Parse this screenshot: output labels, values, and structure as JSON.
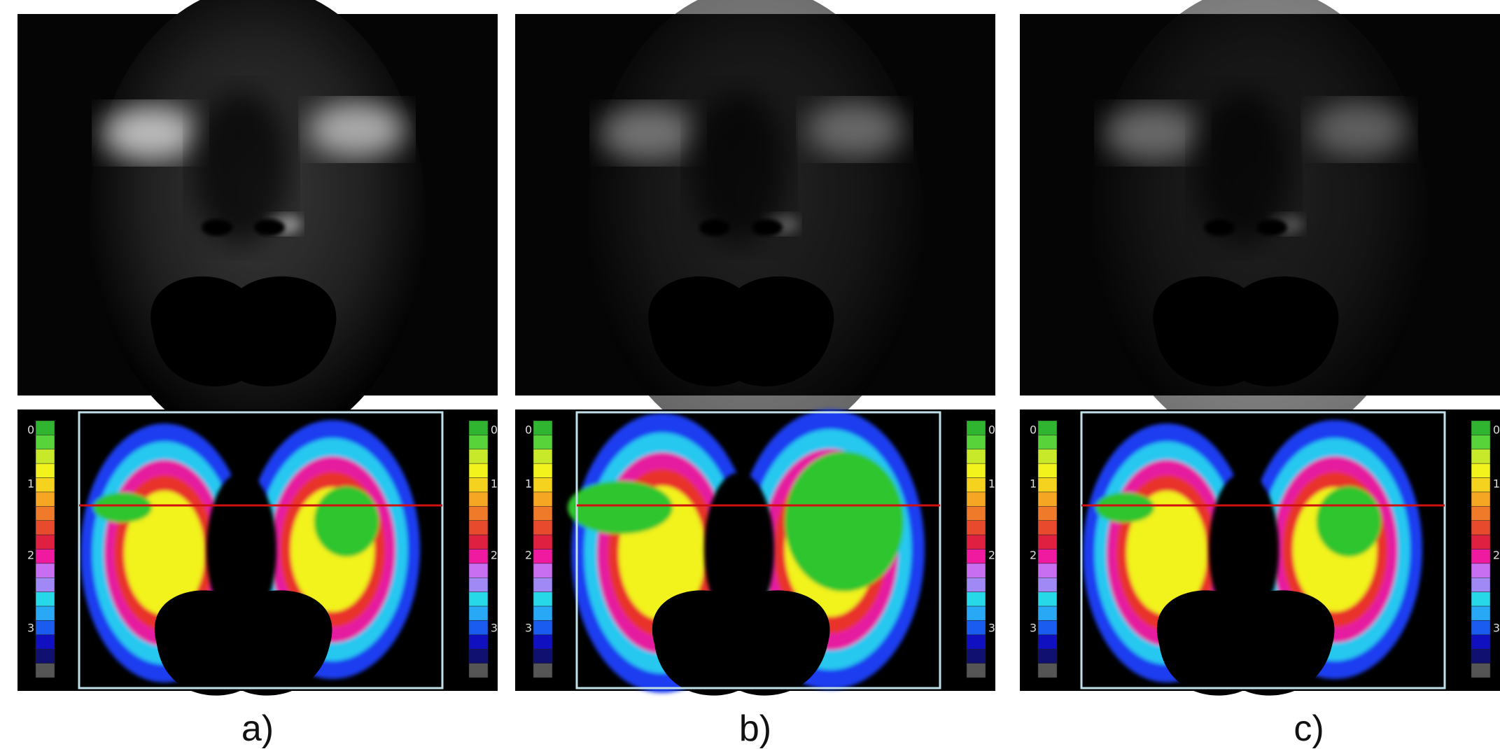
{
  "panels": [
    {
      "label": "a)",
      "scale": [
        "0",
        "1",
        "2",
        "3"
      ]
    },
    {
      "label": "b)",
      "scale": [
        "0",
        "1",
        "2",
        "3"
      ]
    },
    {
      "label": "c)",
      "scale": [
        "0",
        "1",
        "2",
        "3"
      ]
    }
  ]
}
